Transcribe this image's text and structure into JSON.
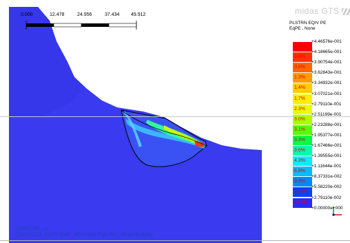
{
  "app": {
    "logo_text": "midas GTS"
  },
  "scale_bar": {
    "labels": [
      "0.000",
      "12.478",
      "24.956",
      "37.434",
      "49.912"
    ]
  },
  "legend": {
    "title_lines": [
      "PLSTRN EQIV PE",
      "EqPE , None"
    ],
    "values": [
      "+4.46576e-001",
      "+4.18665e-001",
      "+3.90754e-001",
      "+3.62843e-001",
      "+3.34932e-001",
      "+3.07021e-001",
      "+2.79110e-001",
      "+2.51199e-001",
      "+2.23288e-001",
      "+1.95377e-001",
      "+1.67466e-001",
      "+1.39555e-001",
      "+1.11644e-001",
      "+8.37331e-002",
      "+5.58220e-002",
      "+2.79110e-002",
      "+0.00000e+000"
    ],
    "percentages": [
      "0.2%",
      "0.6%",
      "0.8%",
      "1.3%",
      "1.4%",
      "1.7%",
      "2.3%",
      "3.0%",
      "3.1%",
      "3.3%",
      "3.6%",
      "4.3%",
      "6.8%",
      "9.3%",
      "10.8%",
      "47.8%"
    ],
    "colors": [
      "#ff0000",
      "#ff3300",
      "#ff6600",
      "#ff9900",
      "#ffcc00",
      "#ffee00",
      "#e8ff00",
      "#aaff00",
      "#55ff00",
      "#00ff44",
      "#00ffaa",
      "#00eeff",
      "#00bbff",
      "#0088ff",
      "#0044ff",
      "#2a2aff"
    ]
  },
  "footer": {
    "unit_line": "[UNIT] kN , m",
    "data_line": "[DATA] CO_Syz A Stab , HO-Plstrn Eqiv PE , Slope Stability"
  },
  "colors": {
    "model_fill": "#3a3af0",
    "background": "#ffffff"
  }
}
